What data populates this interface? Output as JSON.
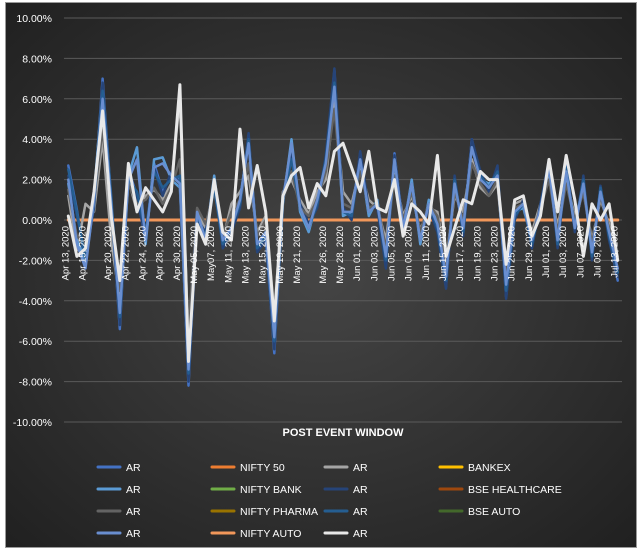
{
  "chart_data": {
    "type": "line",
    "xlabel": "POST EVENT WINDOW",
    "ylabel": "",
    "ylim": [
      -0.1,
      0.1
    ],
    "y_tick_labels": [
      "10.00%",
      "8.00%",
      "6.00%",
      "4.00%",
      "2.00%",
      "0.00%",
      "-2.00%",
      "-4.00%",
      "-6.00%",
      "-8.00%",
      "-10.00%"
    ],
    "y_ticks": [
      0.1,
      0.08,
      0.06,
      0.04,
      0.02,
      0.0,
      -0.02,
      -0.04,
      -0.06,
      -0.08,
      -0.1
    ],
    "grid": true,
    "legend_position": "bottom",
    "background": "#3a3a3a",
    "x": [
      "Apr 13, 2020",
      "Apr 14, 2020",
      "Apr 15, 2020",
      "Apr 16, 2020",
      "Apr 17, 2020",
      "Apr 20, 2020",
      "Apr 21, 2020",
      "Apr 22, 2020",
      "Apr 23, 2020",
      "Apr 24, 2020",
      "Apr 27, 2020",
      "Apr 28, 2020",
      "Apr 29, 2020",
      "Apr 30, 2020",
      "May 04, 2020",
      "May 05, 2020",
      "May 06, 2020",
      "May07, 2020",
      "May 08, 2020",
      "May 11, 2020",
      "May 12, 2020",
      "May 13, 2020",
      "May 14, 2020",
      "May 15, 2020",
      "May 18, 2020",
      "May 19, 2020",
      "May 20, 2020",
      "May 21, 2020",
      "May 22, 2020",
      "May 25, 2020",
      "May 26, 2020",
      "May 27, 2020",
      "May 28, 2020",
      "May 29, 2020",
      "Jun 01, 2020",
      "Jun 02, 2020",
      "Jun 03, 2020",
      "Jun 04, 2020",
      "Jun 05, 2020",
      "Jun 08, 2020",
      "Jun 09, 2020",
      "Jun 10, 2020",
      "Jun 11, 2020",
      "Jun 12, 2020",
      "Jun 15, 2020",
      "Jun 16, 2020",
      "Jun 17, 2020",
      "Jun 18, 2020",
      "Jun 19, 2020",
      "Jun 22, 2020",
      "Jun 23, 2020",
      "Jun 24, 2020",
      "Jun 25, 2020",
      "Jun 26, 2020",
      "Jun 29, 2020",
      "Jun 30, 2020",
      "Jul 01, 2020",
      "Jul 02, 2020",
      "Jul 03, 2020",
      "Jul 06, 2020",
      "Jul 07, 2020",
      "Jul 08, 2020",
      "Jul 09, 2020",
      "Jul 10, 2020",
      "Jul 13, 2020"
    ],
    "x_tick_labels": [
      "Apr 13, 2020",
      "Apr 15, 2020",
      "Apr 20, 2020",
      "Apr 22, 2020",
      "Apr 24, 2020",
      "Apr 28, 2020",
      "Apr 30, 2020",
      "May 05, 2020",
      "May07, 2020",
      "May 11, 2020",
      "May 13, 2020",
      "May 15, 2020",
      "May 19, 2020",
      "May 21, 2020",
      "May 26, 2020",
      "May 28, 2020",
      "Jun 01, 2020",
      "Jun 03, 2020",
      "Jun 05, 2020",
      "Jun 09, 2020",
      "Jun 11, 2020",
      "Jun 15, 2020",
      "Jun 17, 2020",
      "Jun 19, 2020",
      "Jun 23, 2020",
      "Jun 25, 2020",
      "Jun 29, 2020",
      "Jul 01, 2020",
      "Jul 03, 2020",
      "Jul 07, 2020",
      "Jul 09, 2020",
      "Jul 13, 2020"
    ],
    "series": [
      {
        "name": "AR",
        "color": "#4472c4",
        "width": 2.5,
        "values": [
          0.027,
          0.005,
          -0.022,
          0.009,
          0.07,
          0.01,
          -0.054,
          0.025,
          0.012,
          -0.01,
          0.028,
          0.014,
          0.022,
          0.02,
          -0.082,
          0.002,
          -0.008,
          0.02,
          -0.012,
          -0.005,
          0.008,
          0.042,
          -0.015,
          -0.008,
          -0.066,
          0.01,
          0.035,
          0.006,
          -0.004,
          0.008,
          0.03,
          0.074,
          0.004,
          0.002,
          0.033,
          0.004,
          0.008,
          -0.022,
          0.033,
          -0.004,
          0.018,
          -0.01,
          0.008,
          -0.004,
          -0.033,
          0.02,
          -0.006,
          0.04,
          0.022,
          0.016,
          0.025,
          -0.038,
          0.002,
          0.008,
          -0.012,
          0.006,
          0.028,
          -0.012,
          0.028,
          -0.005,
          0.02,
          -0.018,
          0.016,
          -0.008,
          -0.03
        ]
      },
      {
        "name": "NIFTY 50",
        "color": "#ed7d31",
        "width": 3,
        "values": [
          0,
          0,
          0,
          0,
          0,
          0,
          0,
          0,
          0,
          0,
          0,
          0,
          0,
          0,
          0,
          0,
          0,
          0,
          0,
          0,
          0,
          0,
          0,
          0,
          0,
          0,
          0,
          0,
          0,
          0,
          0,
          0,
          0,
          0,
          0,
          0,
          0,
          0,
          0,
          0,
          0,
          0,
          0,
          0,
          0,
          0,
          0,
          0,
          0,
          0,
          0,
          0,
          0,
          0,
          0,
          0,
          0,
          0,
          0,
          0,
          0,
          0,
          0,
          0,
          0
        ]
      },
      {
        "name": "AR",
        "color": "#a5a5a5",
        "width": 2.5,
        "values": [
          0.012,
          -0.015,
          0.008,
          0.004,
          0.04,
          -0.01,
          -0.04,
          0.02,
          0.004,
          0.012,
          0.015,
          0.01,
          0.018,
          0.06,
          -0.062,
          0.004,
          -0.004,
          0.016,
          -0.01,
          0.008,
          0.014,
          0.022,
          -0.006,
          0.002,
          -0.048,
          0.014,
          0.02,
          0.01,
          0.003,
          0.014,
          0.02,
          0.06,
          0.014,
          0.008,
          0.026,
          0.01,
          0.006,
          -0.01,
          0.024,
          0.002,
          0.012,
          -0.005,
          0.006,
          0.004,
          -0.02,
          0.012,
          0.004,
          0.03,
          0.016,
          0.012,
          0.018,
          -0.028,
          0.008,
          0.01,
          -0.006,
          0.008,
          0.022,
          -0.004,
          0.02,
          0.002,
          0.014,
          -0.01,
          0.01,
          -0.002,
          -0.02
        ]
      },
      {
        "name": "BANKEX",
        "color": "#ffc000",
        "width": 2,
        "values": [
          0,
          0,
          0,
          0,
          0,
          0,
          0,
          0,
          0,
          0,
          0,
          0,
          0,
          0,
          0,
          0,
          0,
          0,
          0,
          0,
          0,
          0,
          0,
          0,
          0,
          0,
          0,
          0,
          0,
          0,
          0,
          0,
          0,
          0,
          0,
          0,
          0,
          0,
          0,
          0,
          0,
          0,
          0,
          0,
          0,
          0,
          0,
          0,
          0,
          0,
          0,
          0,
          0,
          0,
          0,
          0,
          0,
          0,
          0,
          0,
          0,
          0,
          0,
          0,
          0
        ]
      },
      {
        "name": "AR",
        "color": "#5b9bd5",
        "width": 2.5,
        "values": [
          0.018,
          -0.01,
          -0.02,
          0.012,
          0.066,
          0.006,
          -0.05,
          0.022,
          0.036,
          -0.012,
          0.03,
          0.031,
          0.02,
          0.016,
          -0.078,
          0.004,
          -0.01,
          0.022,
          -0.01,
          -0.004,
          0.01,
          0.04,
          -0.012,
          -0.006,
          -0.062,
          0.008,
          0.04,
          0.004,
          -0.006,
          0.01,
          0.028,
          0.07,
          0.002,
          0.004,
          0.03,
          0.002,
          0.01,
          -0.02,
          0.03,
          -0.006,
          0.02,
          -0.012,
          0.01,
          -0.002,
          -0.03,
          0.018,
          -0.004,
          0.038,
          0.02,
          0.018,
          0.022,
          -0.034,
          0.004,
          0.006,
          -0.01,
          0.004,
          0.026,
          -0.01,
          0.024,
          -0.004,
          0.018,
          -0.016,
          0.014,
          -0.006,
          -0.026
        ]
      },
      {
        "name": "NIFTY BANK",
        "color": "#70ad47",
        "width": 2,
        "values": [
          0,
          0,
          0,
          0,
          0,
          0,
          0,
          0,
          0,
          0,
          0,
          0,
          0,
          0,
          0,
          0,
          0,
          0,
          0,
          0,
          0,
          0,
          0,
          0,
          0,
          0,
          0,
          0,
          0,
          0,
          0,
          0,
          0,
          0,
          0,
          0,
          0,
          0,
          0,
          0,
          0,
          0,
          0,
          0,
          0,
          0,
          0,
          0,
          0,
          0,
          0,
          0,
          0,
          0,
          0,
          0,
          0,
          0,
          0,
          0,
          0,
          0,
          0,
          0,
          0
        ]
      },
      {
        "name": "AR",
        "color": "#264478",
        "width": 2.5,
        "values": [
          0.022,
          0.002,
          -0.018,
          0.006,
          0.068,
          0.008,
          -0.052,
          0.024,
          0.01,
          -0.008,
          0.026,
          0.012,
          0.024,
          0.018,
          -0.08,
          0.0,
          -0.006,
          0.018,
          -0.014,
          -0.006,
          0.006,
          0.043,
          -0.016,
          -0.01,
          -0.064,
          0.012,
          0.033,
          0.008,
          -0.002,
          0.006,
          0.032,
          0.075,
          0.006,
          0.0,
          0.034,
          0.006,
          0.006,
          -0.024,
          0.032,
          -0.002,
          0.016,
          -0.008,
          0.006,
          -0.006,
          -0.034,
          0.022,
          -0.008,
          0.04,
          0.024,
          0.014,
          0.027,
          -0.039,
          0.0,
          0.01,
          -0.014,
          0.008,
          0.03,
          -0.014,
          0.026,
          -0.006,
          0.022,
          -0.02,
          0.017,
          -0.01,
          -0.028
        ]
      },
      {
        "name": "BSE HEALTHCARE",
        "color": "#9e480e",
        "width": 2,
        "values": [
          0,
          0,
          0,
          0,
          0,
          0,
          0,
          0,
          0,
          0,
          0,
          0,
          0,
          0,
          0,
          0,
          0,
          0,
          0,
          0,
          0,
          0,
          0,
          0,
          0,
          0,
          0,
          0,
          0,
          0,
          0,
          0,
          0,
          0,
          0,
          0,
          0,
          0,
          0,
          0,
          0,
          0,
          0,
          0,
          0,
          0,
          0,
          0,
          0,
          0,
          0,
          0,
          0,
          0,
          0,
          0,
          0,
          0,
          0,
          0,
          0,
          0,
          0,
          0,
          0
        ]
      },
      {
        "name": "AR",
        "color": "#636363",
        "width": 2.5,
        "values": [
          0.015,
          -0.008,
          -0.012,
          0.01,
          0.045,
          0.004,
          -0.035,
          0.018,
          0.008,
          0.01,
          0.016,
          0.008,
          0.016,
          0.03,
          -0.055,
          0.006,
          -0.002,
          0.014,
          -0.008,
          0.004,
          0.01,
          0.028,
          -0.008,
          0.0,
          -0.045,
          0.01,
          0.024,
          0.006,
          0.002,
          0.01,
          0.024,
          0.055,
          0.008,
          0.006,
          0.024,
          0.006,
          0.008,
          -0.014,
          0.022,
          0.0,
          0.014,
          -0.006,
          0.008,
          0.002,
          -0.022,
          0.014,
          0.0,
          0.028,
          0.018,
          0.012,
          0.02,
          -0.026,
          0.006,
          0.008,
          -0.008,
          0.006,
          0.02,
          -0.006,
          0.018,
          0.0,
          0.014,
          -0.012,
          0.012,
          -0.004,
          -0.018
        ]
      },
      {
        "name": "NIFTY PHARMA",
        "color": "#997300",
        "width": 2,
        "values": [
          0,
          0,
          0,
          0,
          0,
          0,
          0,
          0,
          0,
          0,
          0,
          0,
          0,
          0,
          0,
          0,
          0,
          0,
          0,
          0,
          0,
          0,
          0,
          0,
          0,
          0,
          0,
          0,
          0,
          0,
          0,
          0,
          0,
          0,
          0,
          0,
          0,
          0,
          0,
          0,
          0,
          0,
          0,
          0,
          0,
          0,
          0,
          0,
          0,
          0,
          0,
          0,
          0,
          0,
          0,
          0,
          0,
          0,
          0,
          0,
          0,
          0,
          0,
          0,
          0
        ]
      },
      {
        "name": "AR",
        "color": "#255e91",
        "width": 2.5,
        "values": [
          0.025,
          0.004,
          -0.02,
          0.008,
          0.064,
          0.012,
          -0.048,
          0.02,
          0.014,
          -0.006,
          0.024,
          0.016,
          0.02,
          0.022,
          -0.076,
          0.002,
          -0.008,
          0.016,
          -0.012,
          -0.004,
          0.008,
          0.04,
          -0.014,
          -0.008,
          -0.06,
          0.01,
          0.03,
          0.006,
          -0.004,
          0.008,
          0.03,
          0.068,
          0.004,
          0.002,
          0.03,
          0.004,
          0.008,
          -0.02,
          0.03,
          -0.004,
          0.018,
          -0.01,
          0.008,
          -0.004,
          -0.03,
          0.02,
          -0.006,
          0.036,
          0.022,
          0.016,
          0.024,
          -0.035,
          0.002,
          0.008,
          -0.012,
          0.006,
          0.028,
          -0.012,
          0.026,
          -0.004,
          0.02,
          -0.018,
          0.016,
          -0.008,
          -0.026
        ]
      },
      {
        "name": "BSE AUTO",
        "color": "#43682b",
        "width": 2,
        "values": [
          0,
          0,
          0,
          0,
          0,
          0,
          0,
          0,
          0,
          0,
          0,
          0,
          0,
          0,
          0,
          0,
          0,
          0,
          0,
          0,
          0,
          0,
          0,
          0,
          0,
          0,
          0,
          0,
          0,
          0,
          0,
          0,
          0,
          0,
          0,
          0,
          0,
          0,
          0,
          0,
          0,
          0,
          0,
          0,
          0,
          0,
          0,
          0,
          0,
          0,
          0,
          0,
          0,
          0,
          0,
          0,
          0,
          0,
          0,
          0,
          0,
          0,
          0,
          0,
          0
        ]
      },
      {
        "name": "AR",
        "color": "#698ed0",
        "width": 2.5,
        "values": [
          0.02,
          -0.012,
          -0.024,
          0.01,
          0.06,
          0.008,
          -0.046,
          0.02,
          0.03,
          -0.01,
          0.026,
          0.028,
          0.022,
          0.018,
          -0.074,
          0.004,
          -0.01,
          0.02,
          -0.01,
          -0.004,
          0.01,
          0.038,
          -0.012,
          -0.006,
          -0.058,
          0.01,
          0.038,
          0.006,
          -0.004,
          0.01,
          0.028,
          0.066,
          0.004,
          0.004,
          0.03,
          0.004,
          0.008,
          -0.018,
          0.03,
          -0.004,
          0.018,
          -0.01,
          0.008,
          -0.002,
          -0.028,
          0.018,
          -0.004,
          0.036,
          0.02,
          0.016,
          0.022,
          -0.032,
          0.004,
          0.008,
          -0.01,
          0.006,
          0.026,
          -0.01,
          0.024,
          -0.004,
          0.018,
          -0.016,
          0.014,
          -0.006,
          -0.024
        ]
      },
      {
        "name": "NIFTY AUTO",
        "color": "#f1975a",
        "width": 3,
        "values": [
          0,
          0,
          0,
          0,
          0,
          0,
          0,
          0,
          0,
          0,
          0,
          0,
          0,
          0,
          0,
          0,
          0,
          0,
          0,
          0,
          0,
          0,
          0,
          0,
          0,
          0,
          0,
          0,
          0,
          0,
          0,
          0,
          0,
          0,
          0,
          0,
          0,
          0,
          0,
          0,
          0,
          0,
          0,
          0,
          0,
          0,
          0,
          0,
          0,
          0,
          0,
          0,
          0,
          0,
          0,
          0,
          0,
          0,
          0,
          0,
          0,
          0,
          0,
          0,
          0
        ]
      },
      {
        "name": "AR",
        "color": "#e8e8e8",
        "width": 3,
        "values": [
          0.002,
          -0.018,
          -0.014,
          0.014,
          0.054,
          0.002,
          -0.03,
          0.028,
          0.004,
          0.016,
          0.01,
          0.004,
          0.014,
          0.067,
          -0.07,
          -0.002,
          -0.012,
          0.02,
          -0.006,
          -0.01,
          0.045,
          0.006,
          0.027,
          0.004,
          -0.05,
          0.012,
          0.022,
          0.026,
          0.006,
          0.018,
          0.012,
          0.034,
          0.038,
          0.026,
          0.014,
          0.034,
          0.006,
          0.004,
          0.02,
          -0.008,
          0.008,
          0.004,
          -0.002,
          0.032,
          -0.018,
          -0.004,
          0.01,
          0.008,
          0.024,
          0.02,
          0.02,
          -0.022,
          0.01,
          0.012,
          -0.008,
          0.002,
          0.03,
          0.004,
          0.032,
          0.01,
          -0.018,
          0.008,
          0.0,
          0.008,
          -0.02
        ]
      }
    ]
  }
}
